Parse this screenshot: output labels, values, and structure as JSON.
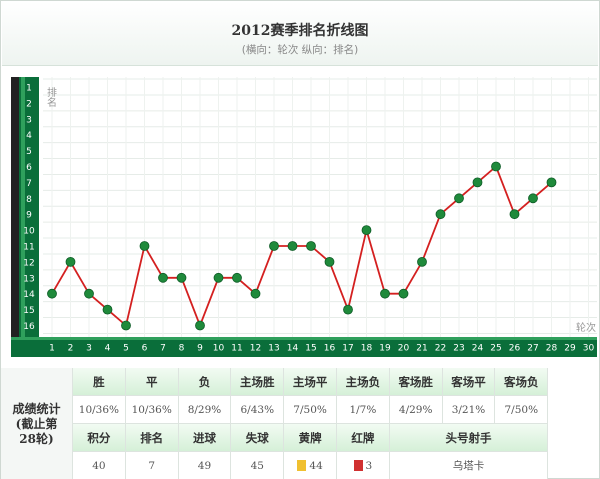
{
  "header": {
    "title": "2012赛季排名折线图",
    "subtitle": "(横向：轮次 纵向：排名)"
  },
  "chart_data": {
    "type": "line",
    "title": "2012赛季排名折线图",
    "xlabel": "轮次",
    "ylabel": "排名",
    "x_categories": [
      1,
      2,
      3,
      4,
      5,
      6,
      7,
      8,
      9,
      10,
      11,
      12,
      13,
      14,
      15,
      16,
      17,
      18,
      19,
      20,
      21,
      22,
      23,
      24,
      25,
      26,
      27,
      28,
      29,
      30
    ],
    "y_ticks": [
      1,
      2,
      3,
      4,
      5,
      6,
      7,
      8,
      9,
      10,
      11,
      12,
      13,
      14,
      15,
      16
    ],
    "ylim": [
      1,
      16
    ],
    "y_inverted": true,
    "grid": true,
    "series": [
      {
        "x": [
          1,
          2,
          3,
          4,
          5,
          6,
          7,
          8,
          9,
          10,
          11,
          12,
          13,
          14,
          15,
          16,
          17,
          18,
          19,
          20,
          21,
          22,
          23,
          24,
          25,
          26,
          27,
          28
        ],
        "values": [
          14,
          12,
          14,
          15,
          16,
          11,
          13,
          13,
          16,
          13,
          13,
          14,
          11,
          11,
          11,
          12,
          15,
          10,
          14,
          14,
          12,
          9,
          8,
          7,
          6,
          9,
          8,
          7
        ]
      }
    ],
    "colors": {
      "line": "#d42020",
      "marker": "#1f8a3b",
      "axis_bar": "#0a6e3a"
    }
  },
  "stats": {
    "side_label": "成绩统计(截止第28轮)",
    "row1_headers": [
      "胜",
      "平",
      "负",
      "主场胜",
      "主场平",
      "主场负",
      "客场胜",
      "客场平",
      "客场负"
    ],
    "row1_values": [
      "10/36%",
      "10/36%",
      "8/29%",
      "6/43%",
      "7/50%",
      "1/7%",
      "4/29%",
      "3/21%",
      "7/50%"
    ],
    "row2_headers": [
      "积分",
      "排名",
      "进球",
      "失球",
      "黄牌",
      "红牌",
      "头号射手"
    ],
    "row2_values": [
      "40",
      "7",
      "49",
      "45",
      "44",
      "3",
      "乌塔卡"
    ],
    "yellow_color": "#f0c030",
    "red_color": "#d03030"
  }
}
